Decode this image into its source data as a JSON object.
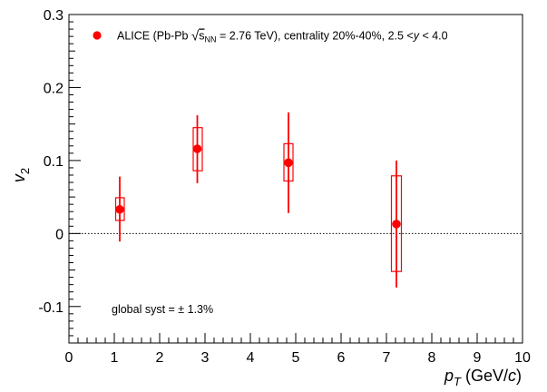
{
  "chart_data": {
    "type": "scatter",
    "legend": {
      "label_prefix": "ALICE (Pb-Pb ",
      "sqrt_symbol": "√",
      "sqrt_s": "s",
      "sqrt_sub": "NN",
      "label_middle": " = 2.76 TeV), centrality 20%-40%, 2.5 <",
      "label_var": "y",
      "label_suffix": " < 4.0",
      "marker_color": "#ff0000",
      "placement": "top-left"
    },
    "xlabel": {
      "main": "p",
      "sub": "T",
      "unit_prefix": " (GeV/",
      "unit_var": "c",
      "unit_suffix": ")"
    },
    "ylabel": {
      "main": "v",
      "sub": "2"
    },
    "xlim": [
      0,
      10
    ],
    "ylim": [
      -0.15,
      0.3
    ],
    "xticks": [
      "0",
      "1",
      "2",
      "3",
      "4",
      "5",
      "6",
      "7",
      "8",
      "9",
      "10"
    ],
    "yticks": [
      {
        "value": -0.1,
        "label": "-0.1"
      },
      {
        "value": 0,
        "label": "0"
      },
      {
        "value": 0.1,
        "label": "0.1"
      },
      {
        "value": 0.2,
        "label": "0.2"
      },
      {
        "value": 0.3,
        "label": "0.3"
      }
    ],
    "reference_line": {
      "y": 0,
      "style": "dotted"
    },
    "series": [
      {
        "name": "ALICE (Pb-Pb √sNN = 2.76 TeV), centrality 20%-40%, 2.5 < y < 4.0",
        "color": "#ff0000",
        "points": [
          {
            "x": 1.12,
            "y": 0.033,
            "stat_lo": -0.011,
            "stat_hi": 0.078,
            "syst_lo": 0.018,
            "syst_hi": 0.049,
            "syst_x_lo": 1.03,
            "syst_x_hi": 1.22
          },
          {
            "x": 2.83,
            "y": 0.116,
            "stat_lo": 0.069,
            "stat_hi": 0.162,
            "syst_lo": 0.086,
            "syst_hi": 0.145,
            "syst_x_lo": 2.74,
            "syst_x_hi": 2.94
          },
          {
            "x": 4.84,
            "y": 0.097,
            "stat_lo": 0.028,
            "stat_hi": 0.166,
            "syst_lo": 0.072,
            "syst_hi": 0.123,
            "syst_x_lo": 4.74,
            "syst_x_hi": 4.94
          },
          {
            "x": 7.22,
            "y": 0.013,
            "stat_lo": -0.074,
            "stat_hi": 0.1,
            "syst_lo": -0.052,
            "syst_hi": 0.079,
            "syst_x_lo": 7.11,
            "syst_x_hi": 7.33
          }
        ]
      }
    ],
    "annotation": "global syst = ± 1.3%",
    "grid": false
  }
}
